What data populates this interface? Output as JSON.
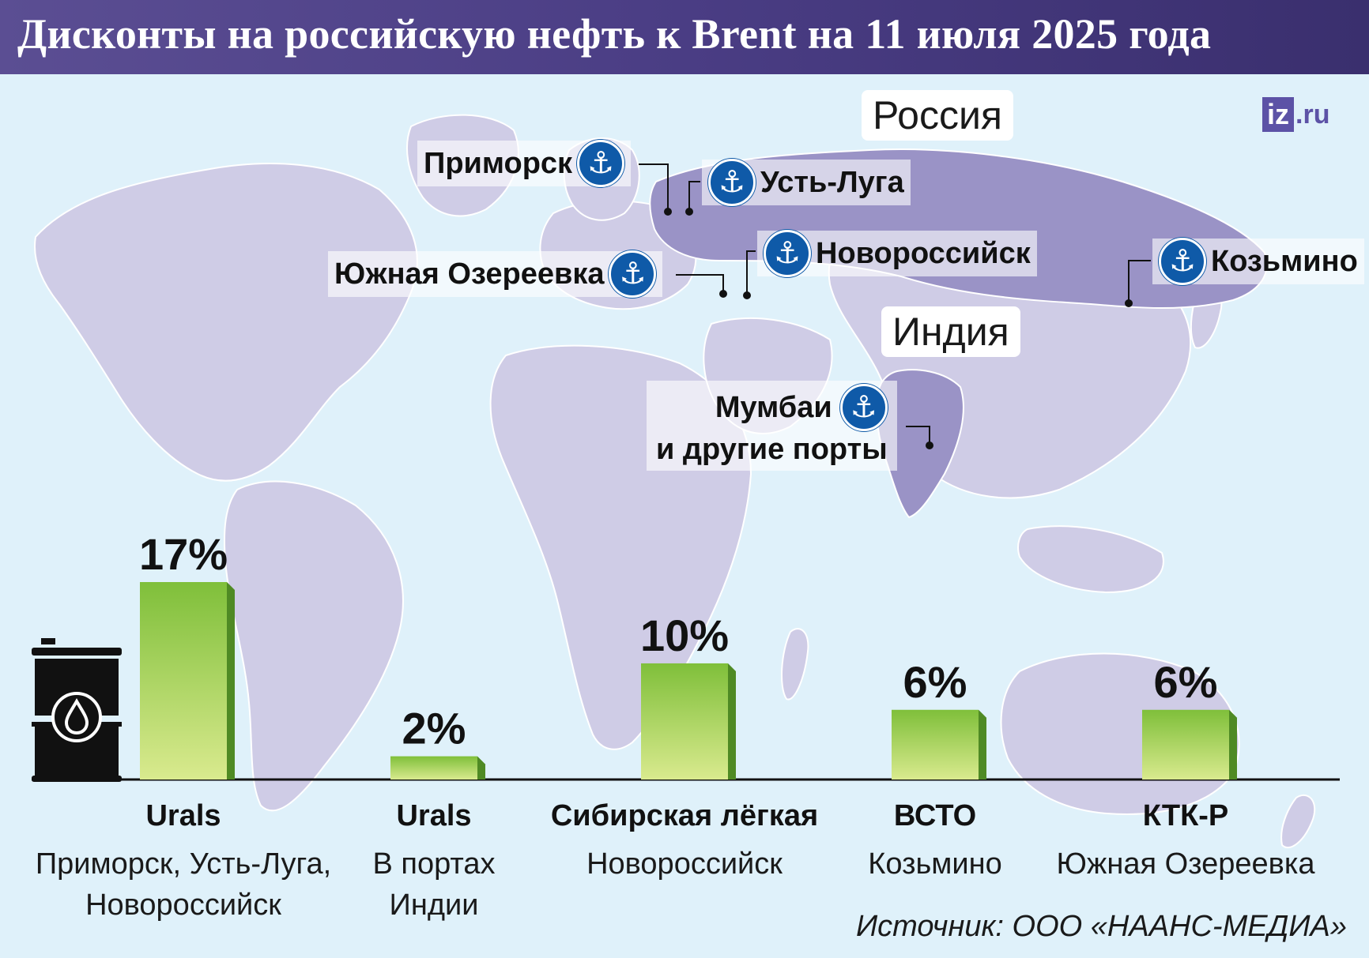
{
  "header": {
    "title": "Дисконты на российскую нефть к Brent на 11 июля 2025 года"
  },
  "logo": {
    "main": "iz",
    "suffix": ".ru"
  },
  "map": {
    "countries": [
      {
        "id": "russia",
        "label": "Россия"
      },
      {
        "id": "india",
        "label": "Индия"
      }
    ],
    "ports": {
      "primorsk": "Приморск",
      "ust_luga": "Усть-Луга",
      "novorossiysk": "Новороссийск",
      "yuzhnaya": "Южная Озереевка",
      "kozmino": "Козьмино",
      "mumbai_line1": "Мумбаи",
      "mumbai_line2": "и другие порты"
    },
    "colors": {
      "water": "#dff1fa",
      "land": "#cfcce6",
      "russia": "#9a93c6",
      "port_icon": "#0f5aa8"
    },
    "icon": "anchor-icon"
  },
  "chart_data": {
    "type": "bar",
    "title": "Дисконты на российскую нефть к Brent на 11 июля 2025 года",
    "unit": "%",
    "categories": [
      "Urals",
      "Urals",
      "Сибирская лёгкая",
      "ВСТО",
      "КТК-Р"
    ],
    "subtitles": [
      [
        "Приморск, Усть-Луга,",
        "Новороссийск"
      ],
      [
        "В портах",
        "Индии"
      ],
      [
        "Новороссийск"
      ],
      [
        "Козьмино"
      ],
      [
        "Южная Озереевка"
      ]
    ],
    "values": [
      17,
      2,
      10,
      6,
      6
    ],
    "value_labels": [
      "17%",
      "2%",
      "10%",
      "6%",
      "6%"
    ],
    "ylim": [
      0,
      18
    ],
    "grid": false,
    "colors": {
      "bar_top": "#7fbf3a",
      "bar_bottom": "#d9ea8e",
      "bar_side": "#4f8a24"
    },
    "icon": "oil-barrel-icon"
  },
  "source": "Источник: ООО «НААНС-МЕДИА»"
}
